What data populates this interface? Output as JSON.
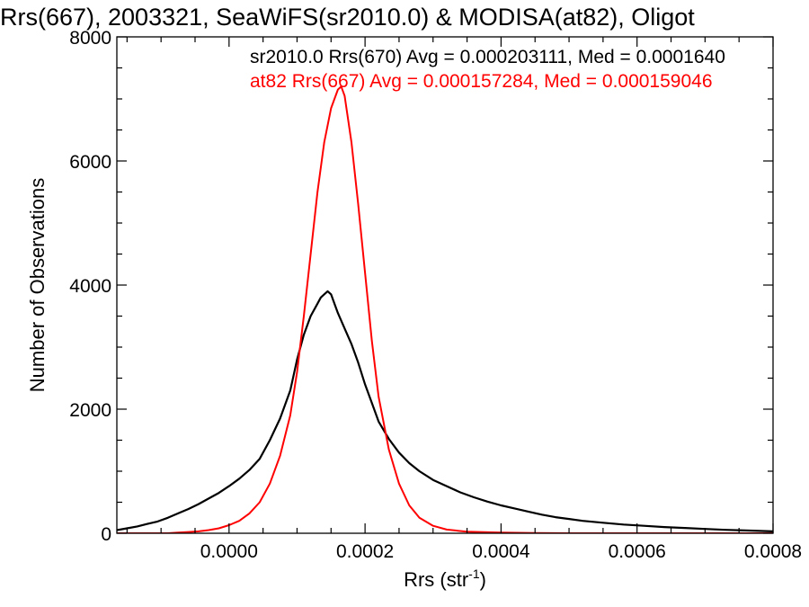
{
  "chart_data": {
    "type": "line",
    "title": "Rrs(667), 2003321, SeaWiFS(sr2010.0) & MODISA(at82), Oligot",
    "xlabel": "Rrs (str",
    "xlabel_sup": "-1",
    "xlabel_close": ")",
    "ylabel": "Number of Observations",
    "xlim": [
      -0.000165,
      0.0008
    ],
    "ylim": [
      0,
      8000
    ],
    "x_ticks": [
      0.0,
      0.0002,
      0.0004,
      0.0006,
      0.0008
    ],
    "x_tick_labels": [
      "0.0000",
      "0.0002",
      "0.0004",
      "0.0006",
      "0.0008"
    ],
    "y_ticks": [
      0,
      2000,
      4000,
      6000,
      8000
    ],
    "y_tick_labels": [
      "0",
      "2000",
      "4000",
      "6000",
      "8000"
    ],
    "grid": false,
    "legend_placement": "top-right",
    "annotations": [
      {
        "text": "sr2010.0 Rrs(670) Avg = 0.000203111, Med = 0.0001640",
        "color": "#000000"
      },
      {
        "text": "at82 Rrs(667) Avg = 0.000157284, Med = 0.000159046",
        "color": "#ff0000"
      }
    ],
    "series": [
      {
        "color": "#000000",
        "x": [
          -0.000165,
          -0.00015,
          -0.000135,
          -0.00012,
          -0.000105,
          -9e-05,
          -7.5e-05,
          -6e-05,
          -4.5e-05,
          -3e-05,
          -1.5e-05,
          0.0,
          1.5e-05,
          3e-05,
          4.5e-05,
          6e-05,
          7.5e-05,
          9e-05,
          0.0001,
          0.00011,
          0.00012,
          0.00013,
          0.000135,
          0.00014,
          0.000145,
          0.00015,
          0.000155,
          0.00016,
          0.00017,
          0.00018,
          0.00019,
          0.0002,
          0.00021,
          0.00022,
          0.000235,
          0.00025,
          0.000265,
          0.00028,
          0.0003,
          0.00032,
          0.00034,
          0.00036,
          0.00038,
          0.0004,
          0.00042,
          0.00044,
          0.00046,
          0.00048,
          0.0005,
          0.00052,
          0.00055,
          0.00058,
          0.00061,
          0.00064,
          0.00067,
          0.0007,
          0.00073,
          0.00076,
          0.0008
        ],
        "values": [
          50,
          80,
          110,
          150,
          190,
          250,
          320,
          390,
          470,
          560,
          650,
          760,
          880,
          1020,
          1200,
          1500,
          1850,
          2300,
          2800,
          3200,
          3500,
          3700,
          3800,
          3850,
          3900,
          3850,
          3700,
          3550,
          3300,
          3050,
          2750,
          2400,
          2100,
          1800,
          1520,
          1300,
          1130,
          1000,
          860,
          760,
          660,
          580,
          510,
          450,
          400,
          350,
          300,
          260,
          230,
          200,
          170,
          140,
          120,
          100,
          85,
          70,
          55,
          45,
          30
        ]
      },
      {
        "color": "#ff0000",
        "x": [
          -0.000165,
          -0.00015,
          -0.000135,
          -0.00012,
          -0.000105,
          -9e-05,
          -7.5e-05,
          -6e-05,
          -4.5e-05,
          -3e-05,
          -1.5e-05,
          0.0,
          1.5e-05,
          3e-05,
          4.5e-05,
          6e-05,
          7.5e-05,
          9e-05,
          0.0001,
          0.00011,
          0.00012,
          0.00013,
          0.00014,
          0.00015,
          0.00016,
          0.000165,
          0.00017,
          0.00018,
          0.00019,
          0.0002,
          0.00021,
          0.00022,
          0.000235,
          0.00025,
          0.000265,
          0.00028,
          0.0003,
          0.00032,
          0.00035,
          0.0004,
          0.00045,
          0.0005,
          0.0006,
          0.0007,
          0.0008
        ],
        "values": [
          0,
          0,
          0,
          0,
          0,
          0,
          10,
          20,
          30,
          50,
          80,
          130,
          200,
          320,
          500,
          800,
          1250,
          1900,
          2600,
          3500,
          4500,
          5500,
          6300,
          6850,
          7150,
          7200,
          7050,
          6300,
          5300,
          4200,
          3100,
          2200,
          1350,
          800,
          450,
          250,
          120,
          60,
          25,
          10,
          5,
          0,
          0,
          0,
          0
        ]
      }
    ]
  }
}
